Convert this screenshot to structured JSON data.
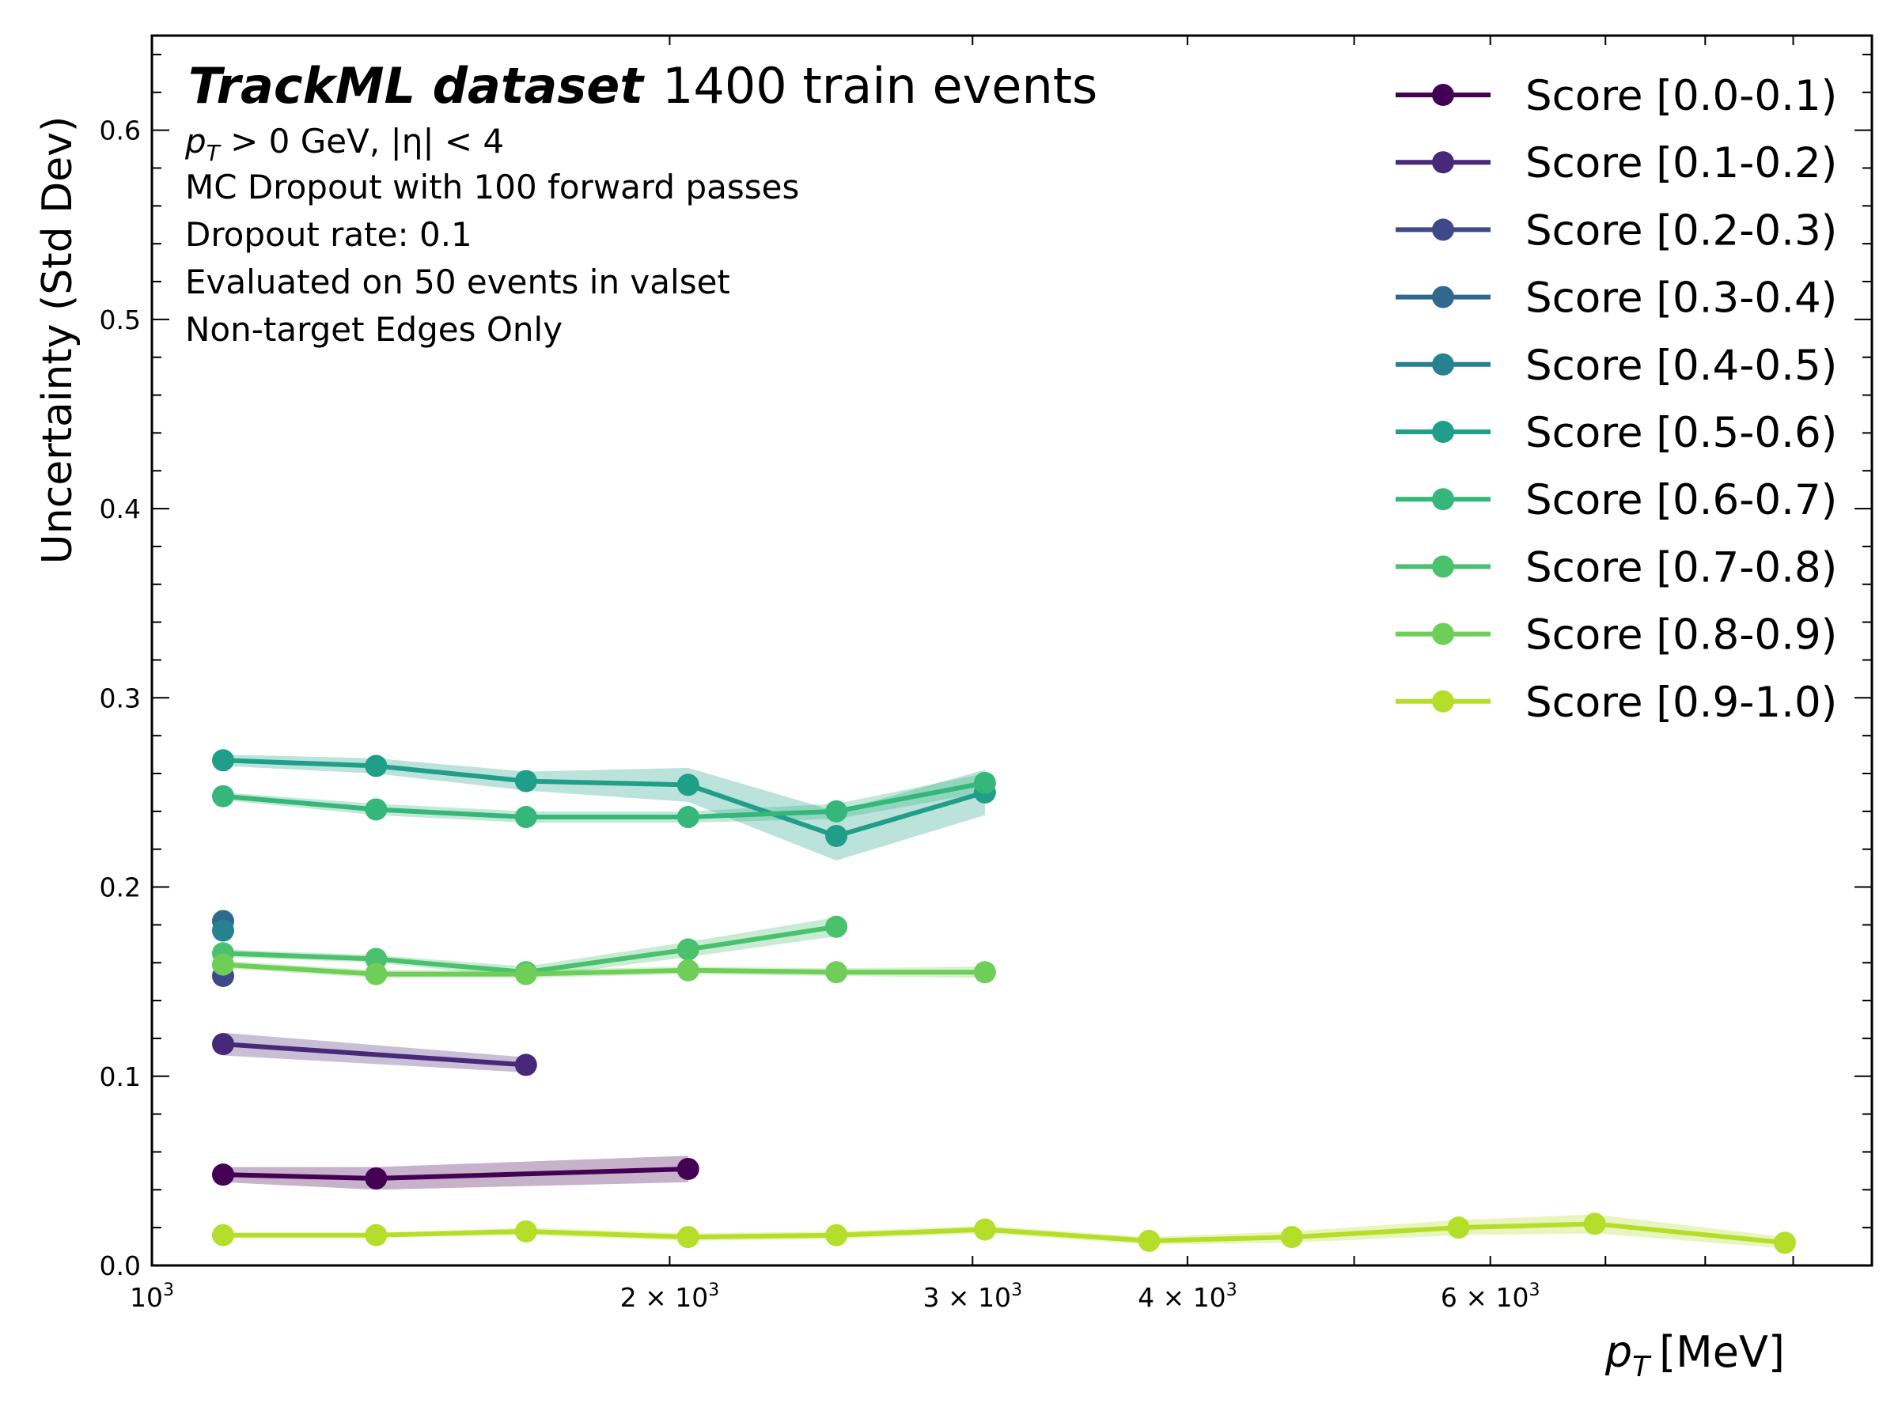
{
  "chart_data": {
    "type": "line",
    "xscale": "log",
    "xlim": [
      1000,
      10000
    ],
    "ylim": [
      0,
      0.65
    ],
    "xlabel": "p_T [MeV]",
    "ylabel": "Uncertainty (Std Dev)",
    "y_ticks": [
      "0.0",
      "0.1",
      "0.2",
      "0.3",
      "0.4",
      "0.5",
      "0.6"
    ],
    "x_ticks": [
      {
        "value": 1000,
        "base": "10",
        "exp": "3",
        "mult": ""
      },
      {
        "value": 2000,
        "base": "10",
        "exp": "3",
        "mult": "2 × "
      },
      {
        "value": 3000,
        "base": "10",
        "exp": "3",
        "mult": "3 × "
      },
      {
        "value": 4000,
        "base": "10",
        "exp": "3",
        "mult": "4 × "
      },
      {
        "value": 6000,
        "base": "10",
        "exp": "3",
        "mult": "6 × "
      }
    ],
    "legend_position": "top-right",
    "annotation": {
      "title_bold": "TrackML dataset",
      "title_rest": "1400 train events",
      "line1_pt": "p",
      "line1_sub": "T",
      "line1_rest": " > 0 GeV, |η| < 4",
      "lines": [
        "MC Dropout with 100 forward passes",
        "Dropout rate: 0.1",
        "Evaluated on 50 events in valset",
        "Non-target Edges Only"
      ]
    },
    "series": [
      {
        "name": "Score [0.0-0.1)",
        "color": "#440154",
        "x": [
          1100,
          1350,
          2050
        ],
        "y": [
          0.048,
          0.046,
          0.051
        ],
        "err": [
          0.004,
          0.006,
          0.007
        ]
      },
      {
        "name": "Score [0.1-0.2)",
        "color": "#482878",
        "x": [
          1100,
          1650
        ],
        "y": [
          0.117,
          0.106
        ],
        "err": [
          0.006,
          0.004
        ]
      },
      {
        "name": "Score [0.2-0.3)",
        "color": "#3e4989",
        "x": [
          1100
        ],
        "y": [
          0.153
        ],
        "err": [
          0.002
        ]
      },
      {
        "name": "Score [0.3-0.4)",
        "color": "#31688e",
        "x": [
          1100
        ],
        "y": [
          0.182
        ],
        "err": [
          0.002
        ]
      },
      {
        "name": "Score [0.4-0.5)",
        "color": "#26828e",
        "x": [
          1100
        ],
        "y": [
          0.177
        ],
        "err": [
          0.002
        ]
      },
      {
        "name": "Score [0.5-0.6)",
        "color": "#1f9e89",
        "x": [
          1100,
          1350,
          1650,
          2050,
          2500,
          3050
        ],
        "y": [
          0.267,
          0.264,
          0.256,
          0.254,
          0.227,
          0.25
        ],
        "err": [
          0.003,
          0.004,
          0.005,
          0.009,
          0.013,
          0.012
        ]
      },
      {
        "name": "Score [0.6-0.7)",
        "color": "#35b779",
        "x": [
          1100,
          1350,
          1650,
          2050,
          2500,
          3050
        ],
        "y": [
          0.248,
          0.241,
          0.237,
          0.237,
          0.24,
          0.255
        ],
        "err": [
          0.002,
          0.003,
          0.003,
          0.003,
          0.004,
          0.005
        ]
      },
      {
        "name": "Score [0.7-0.8)",
        "color": "#4ac16d",
        "x": [
          1100,
          1350,
          1650,
          2050,
          2500
        ],
        "y": [
          0.165,
          0.162,
          0.155,
          0.167,
          0.179
        ],
        "err": [
          0.002,
          0.002,
          0.003,
          0.004,
          0.005
        ]
      },
      {
        "name": "Score [0.8-0.9)",
        "color": "#6ece58",
        "x": [
          1100,
          1350,
          1650,
          2050,
          2500,
          3050
        ],
        "y": [
          0.159,
          0.154,
          0.154,
          0.156,
          0.155,
          0.155
        ],
        "err": [
          0.002,
          0.002,
          0.002,
          0.002,
          0.002,
          0.003
        ]
      },
      {
        "name": "Score [0.9-1.0)",
        "color": "#b5de2b",
        "x": [
          1100,
          1350,
          1650,
          2050,
          2500,
          3050,
          3800,
          4600,
          5750,
          6900,
          8900
        ],
        "y": [
          0.016,
          0.016,
          0.018,
          0.015,
          0.016,
          0.019,
          0.013,
          0.015,
          0.02,
          0.022,
          0.012
        ],
        "err": [
          0.001,
          0.001,
          0.002,
          0.002,
          0.002,
          0.002,
          0.002,
          0.003,
          0.004,
          0.005,
          0.003
        ]
      }
    ]
  }
}
